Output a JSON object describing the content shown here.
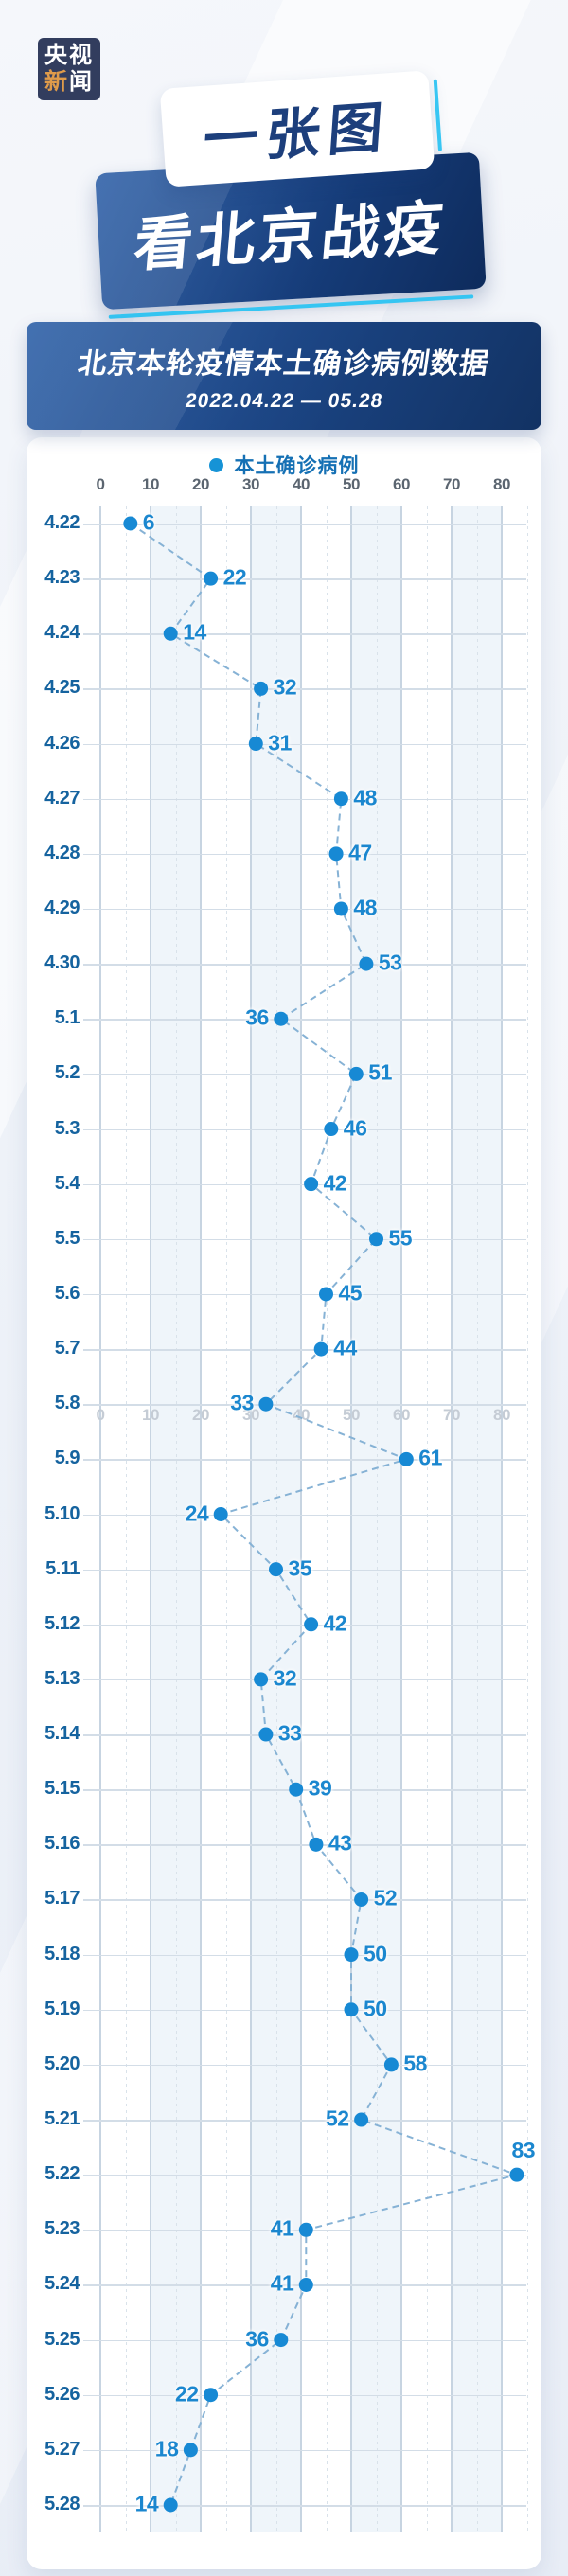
{
  "logo": {
    "line1": "央视",
    "line2_first": "新",
    "line2_rest": "闻"
  },
  "header": {
    "badge_top": "一张图",
    "badge_bottom": "看北京战疫"
  },
  "title_bar": {
    "title": "北京本轮疫情本土确诊病例数据",
    "date_range": "2022.04.22 — 05.28"
  },
  "legend": {
    "label": "本土确诊病例",
    "dot_color": "#1693d6"
  },
  "chart_data": {
    "type": "line",
    "orientation": "values on horizontal axis, dates on vertical axis",
    "title": "北京本轮疫情本土确诊病例数据",
    "subtitle": "2022.04.22 — 05.28",
    "series_name": "本土确诊病例",
    "x_ticks": [
      0,
      10,
      20,
      30,
      40,
      50,
      60,
      70,
      80
    ],
    "xlim": [
      0,
      85
    ],
    "grid": true,
    "line_style": "dashed",
    "legend_position": "top-center",
    "categories": [
      "4.22",
      "4.23",
      "4.24",
      "4.25",
      "4.26",
      "4.27",
      "4.28",
      "4.29",
      "4.30",
      "5.1",
      "5.2",
      "5.3",
      "5.4",
      "5.5",
      "5.6",
      "5.7",
      "5.8",
      "5.9",
      "5.10",
      "5.11",
      "5.12",
      "5.13",
      "5.14",
      "5.15",
      "5.16",
      "5.17",
      "5.18",
      "5.19",
      "5.20",
      "5.21",
      "5.22",
      "5.23",
      "5.24",
      "5.25",
      "5.26",
      "5.27",
      "5.28"
    ],
    "values": [
      6,
      22,
      14,
      32,
      31,
      48,
      47,
      48,
      53,
      36,
      51,
      46,
      42,
      55,
      45,
      44,
      33,
      61,
      24,
      35,
      42,
      32,
      33,
      39,
      43,
      52,
      50,
      50,
      58,
      52,
      83,
      41,
      41,
      36,
      22,
      18,
      14
    ],
    "value_label_sides": [
      "right",
      "right",
      "right",
      "right",
      "right",
      "right",
      "right",
      "right",
      "right",
      "left",
      "right",
      "right",
      "right",
      "right",
      "right",
      "right",
      "left",
      "right",
      "left",
      "right",
      "right",
      "right",
      "right",
      "right",
      "right",
      "right",
      "right",
      "right",
      "right",
      "left",
      "above",
      "left",
      "left",
      "left",
      "left",
      "left",
      "left"
    ],
    "colors": {
      "dot": "#1789d4",
      "value_label": "#1b87cf",
      "date_label": "#15639f",
      "axis_tick": "#5b6570",
      "axis_tick_faint": "#c5ccd5",
      "connector_line": "#86b2d5",
      "grid_major": "#c7d4e1",
      "grid_minor": "#d9e2ea",
      "row_line": "#d3dde7",
      "band": "#eff5fa"
    }
  }
}
